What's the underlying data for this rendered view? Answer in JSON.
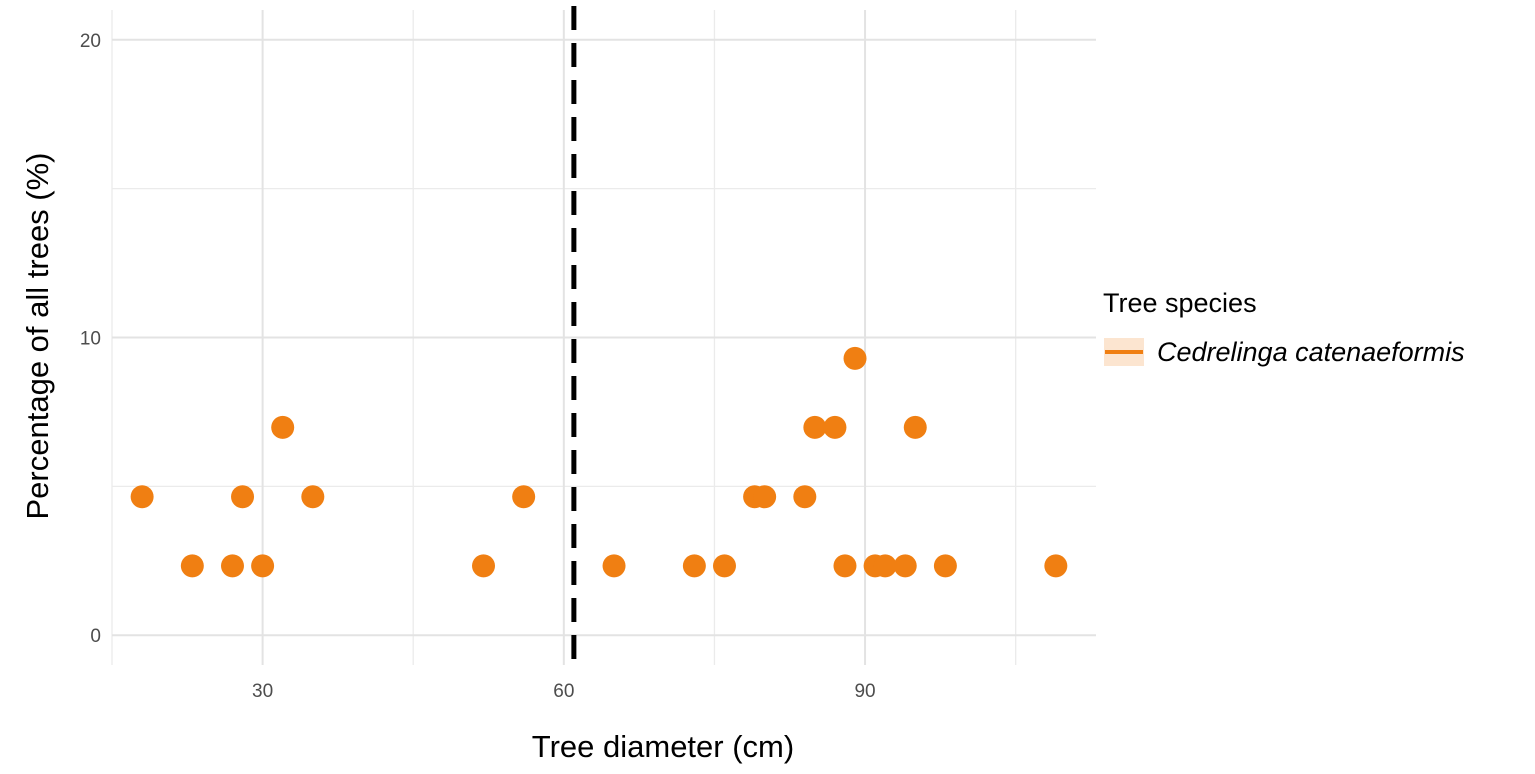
{
  "chart_data": {
    "type": "scatter",
    "xlabel": "Tree diameter (cm)",
    "ylabel": "Percentage of all trees (%)",
    "xlim": [
      15,
      113
    ],
    "ylim": [
      -1,
      21
    ],
    "x_ticks": [
      30,
      60,
      90
    ],
    "y_ticks": [
      0,
      10,
      20
    ],
    "grid": true,
    "reference_line": {
      "x": 61,
      "style": "dashed",
      "color": "#000000"
    },
    "legend": {
      "title": "Tree species",
      "position": "right",
      "entries": [
        {
          "label": "Cedrelinga catenaeformis",
          "color": "#F07F12"
        }
      ]
    },
    "series": [
      {
        "name": "Cedrelinga catenaeformis",
        "color": "#F07F12",
        "points": [
          {
            "x": 18,
            "y": 4.65
          },
          {
            "x": 23,
            "y": 2.33
          },
          {
            "x": 27,
            "y": 2.33
          },
          {
            "x": 28,
            "y": 4.65
          },
          {
            "x": 30,
            "y": 2.33
          },
          {
            "x": 32,
            "y": 6.98
          },
          {
            "x": 35,
            "y": 4.65
          },
          {
            "x": 52,
            "y": 2.33
          },
          {
            "x": 56,
            "y": 4.65
          },
          {
            "x": 65,
            "y": 2.33
          },
          {
            "x": 73,
            "y": 2.33
          },
          {
            "x": 76,
            "y": 2.33
          },
          {
            "x": 79,
            "y": 4.65
          },
          {
            "x": 80,
            "y": 4.65
          },
          {
            "x": 84,
            "y": 4.65
          },
          {
            "x": 85,
            "y": 6.98
          },
          {
            "x": 87,
            "y": 6.98
          },
          {
            "x": 88,
            "y": 2.33
          },
          {
            "x": 89,
            "y": 9.3
          },
          {
            "x": 91,
            "y": 2.33
          },
          {
            "x": 92,
            "y": 2.33
          },
          {
            "x": 94,
            "y": 2.33
          },
          {
            "x": 95,
            "y": 6.98
          },
          {
            "x": 98,
            "y": 2.33
          },
          {
            "x": 109,
            "y": 2.33
          }
        ]
      }
    ]
  }
}
